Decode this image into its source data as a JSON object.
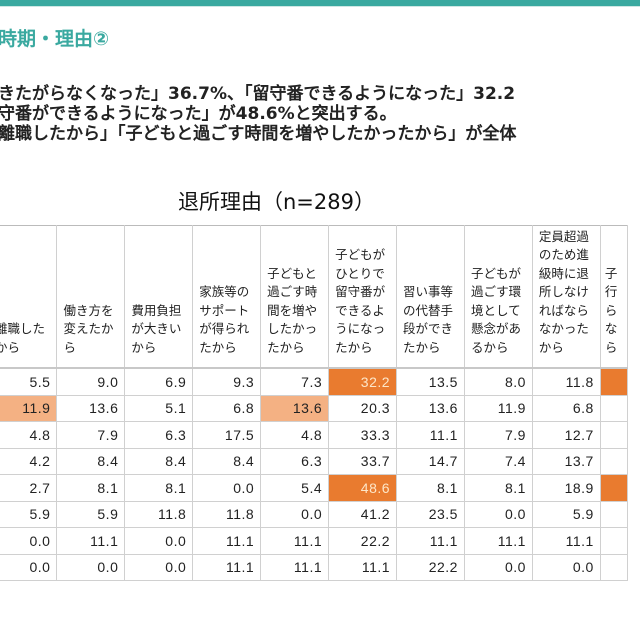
{
  "section_title": "時期・理由②",
  "body_lines": [
    "きたがらなくなった」36.7%、「留守番できるようになった」32.2",
    "守番ができるようになった」が48.6%と突出する。",
    "離職したから」「子どもと過ごす時間を増やしたかったから」が全体"
  ],
  "table": {
    "title": "退所理由（n=289）",
    "columns": [
      {
        "lines": [
          "離職した",
          "から"
        ]
      },
      {
        "lines": [
          "働き方を",
          "変えたか",
          "ら"
        ]
      },
      {
        "lines": [
          "費用負担",
          "が大きい",
          "から"
        ]
      },
      {
        "lines": [
          "家族等の",
          "サポート",
          "が得られ",
          "たから"
        ]
      },
      {
        "lines": [
          "子どもと",
          "過ごす時",
          "間を増や",
          "したかっ",
          "たから"
        ]
      },
      {
        "lines": [
          "子どもが",
          "ひとりで",
          "留守番が",
          "できるよ",
          "うになっ",
          "たから"
        ]
      },
      {
        "lines": [
          "習い事等",
          "の代替手",
          "段ができ",
          "たから"
        ]
      },
      {
        "lines": [
          "子どもが",
          "過ごす環",
          "境として",
          "懸念があ",
          "るから"
        ]
      },
      {
        "lines": [
          "定員超過",
          "のため進",
          "級時に退",
          "所しなけ",
          "ればなら",
          "なかった",
          "から"
        ]
      },
      {
        "lines": [
          "子",
          "行",
          "ら",
          "な",
          "ら"
        ]
      }
    ],
    "rows": [
      [
        "5.5",
        "9.0",
        "6.9",
        "9.3",
        "7.3",
        "32.2",
        "13.5",
        "8.0",
        "11.8",
        ""
      ],
      [
        "11.9",
        "13.6",
        "5.1",
        "6.8",
        "13.6",
        "20.3",
        "13.6",
        "11.9",
        "6.8",
        ""
      ],
      [
        "4.8",
        "7.9",
        "6.3",
        "17.5",
        "4.8",
        "33.3",
        "11.1",
        "7.9",
        "12.7",
        ""
      ],
      [
        "4.2",
        "8.4",
        "8.4",
        "8.4",
        "6.3",
        "33.7",
        "14.7",
        "7.4",
        "13.7",
        ""
      ],
      [
        "2.7",
        "8.1",
        "8.1",
        "0.0",
        "5.4",
        "48.6",
        "8.1",
        "8.1",
        "18.9",
        ""
      ],
      [
        "5.9",
        "5.9",
        "11.8",
        "11.8",
        "0.0",
        "41.2",
        "23.5",
        "0.0",
        "5.9",
        ""
      ],
      [
        "0.0",
        "11.1",
        "0.0",
        "11.1",
        "11.1",
        "22.2",
        "11.1",
        "11.1",
        "11.1",
        ""
      ],
      [
        "0.0",
        "0.0",
        "0.0",
        "11.1",
        "11.1",
        "11.1",
        "22.2",
        "0.0",
        "0.0",
        ""
      ]
    ],
    "highlights": {
      "dark": [
        [
          0,
          5
        ],
        [
          4,
          5
        ],
        [
          0,
          9
        ],
        [
          4,
          9
        ]
      ],
      "light": [
        [
          1,
          0
        ],
        [
          1,
          4
        ]
      ]
    },
    "colors": {
      "accent": "#3aa9a0",
      "highlight_dark": "#e97b2f",
      "highlight_light": "#f4b183"
    }
  }
}
